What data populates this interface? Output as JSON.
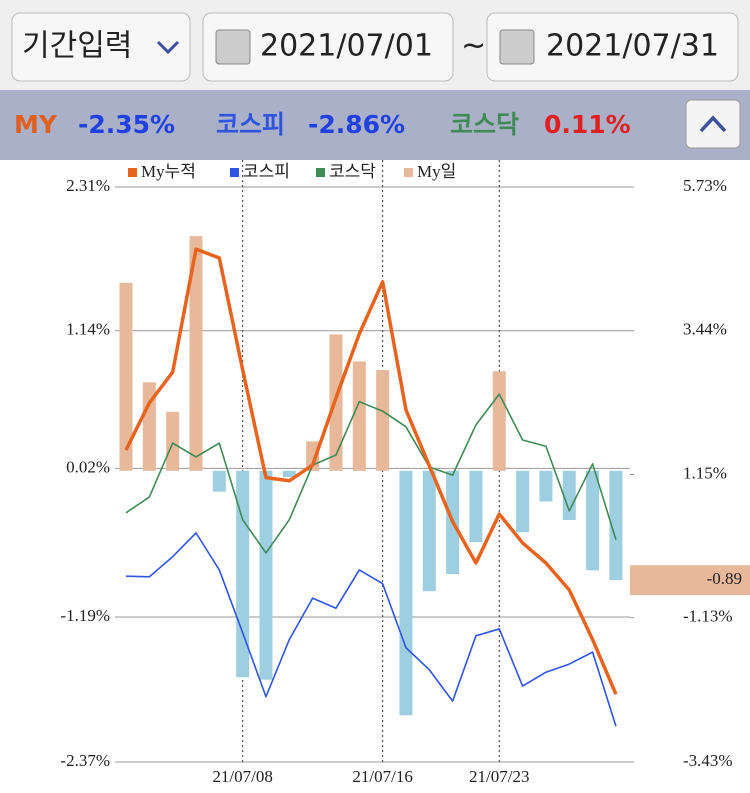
{
  "controls": {
    "period": "기간입력",
    "start": "2021/07/01",
    "separator": "~",
    "end": "2021/07/31"
  },
  "summary": [
    {
      "name": "MY",
      "value": "-2.35%"
    },
    {
      "name": "코스피",
      "value": "-2.86%"
    },
    {
      "name": "코스닥",
      "value": "0.11%"
    }
  ],
  "chart_data": {
    "type": "combo",
    "categories": [
      null,
      null,
      null,
      null,
      null,
      "21/07/08",
      null,
      null,
      null,
      null,
      null,
      "21/07/16",
      null,
      null,
      null,
      null,
      "21/07/23",
      null,
      null,
      null,
      null,
      null
    ],
    "series": [
      {
        "name": "My누적",
        "type": "line",
        "axis": "y2",
        "color": "#e8641e",
        "values": [
          1.54,
          2.29,
          2.78,
          4.74,
          4.6,
          2.82,
          1.1,
          1.05,
          1.3,
          2.37,
          3.39,
          4.22,
          2.18,
          1.29,
          0.4,
          -0.26,
          0.52,
          0.06,
          -0.26,
          -0.69,
          -1.48,
          -2.35
        ]
      },
      {
        "name": "코스피",
        "type": "line",
        "axis": "y2",
        "color": "#2f55e0",
        "values": [
          -0.47,
          -0.48,
          -0.16,
          0.22,
          -0.37,
          -1.37,
          -2.39,
          -1.48,
          -0.82,
          -0.98,
          -0.37,
          -0.59,
          -1.61,
          -1.96,
          -2.46,
          -1.42,
          -1.31,
          -2.22,
          -2,
          -1.87,
          -1.68,
          -2.86
        ]
      },
      {
        "name": "코스닥",
        "type": "line",
        "axis": "y2",
        "color": "#3f8a55",
        "values": [
          0.54,
          0.79,
          1.65,
          1.43,
          1.65,
          0.43,
          -0.1,
          0.43,
          1.3,
          1.46,
          2.31,
          2.16,
          1.91,
          1.27,
          1.14,
          1.94,
          2.43,
          1.7,
          1.6,
          0.57,
          1.32,
          0.11
        ]
      },
      {
        "name": "My일",
        "type": "bar",
        "color": "#e8b89a",
        "negative_color": "#9dcfe0",
        "values": [
          1.53,
          0.72,
          0.48,
          1.91,
          -0.17,
          -1.68,
          -1.7,
          -0.05,
          0.24,
          1.11,
          0.89,
          0.82,
          -1.99,
          -0.98,
          -0.84,
          -0.58,
          0.81,
          -0.5,
          -0.25,
          -0.4,
          -0.81,
          -0.89
        ]
      }
    ],
    "ylim": [
      -2.37,
      2.31
    ],
    "yticks": [
      {
        "value": 2.31,
        "label": "2.31%"
      },
      {
        "value": 1.14,
        "label": "1.14%"
      },
      {
        "value": 0.02,
        "label": "0.02%"
      },
      {
        "value": -1.19,
        "label": "-1.19%"
      },
      {
        "value": -2.37,
        "label": "-2.37%"
      }
    ],
    "y2lim": [
      -3.43,
      5.73
    ],
    "y2ticks": [
      {
        "value": 5.73,
        "label": "5.73%"
      },
      {
        "value": 3.44,
        "label": "3.44%"
      },
      {
        "value": 1.15,
        "label": "1.15%"
      },
      {
        "value": -1.13,
        "label": "-1.13%"
      },
      {
        "value": -3.43,
        "label": "-3.43%"
      }
    ],
    "grid": true
  }
}
